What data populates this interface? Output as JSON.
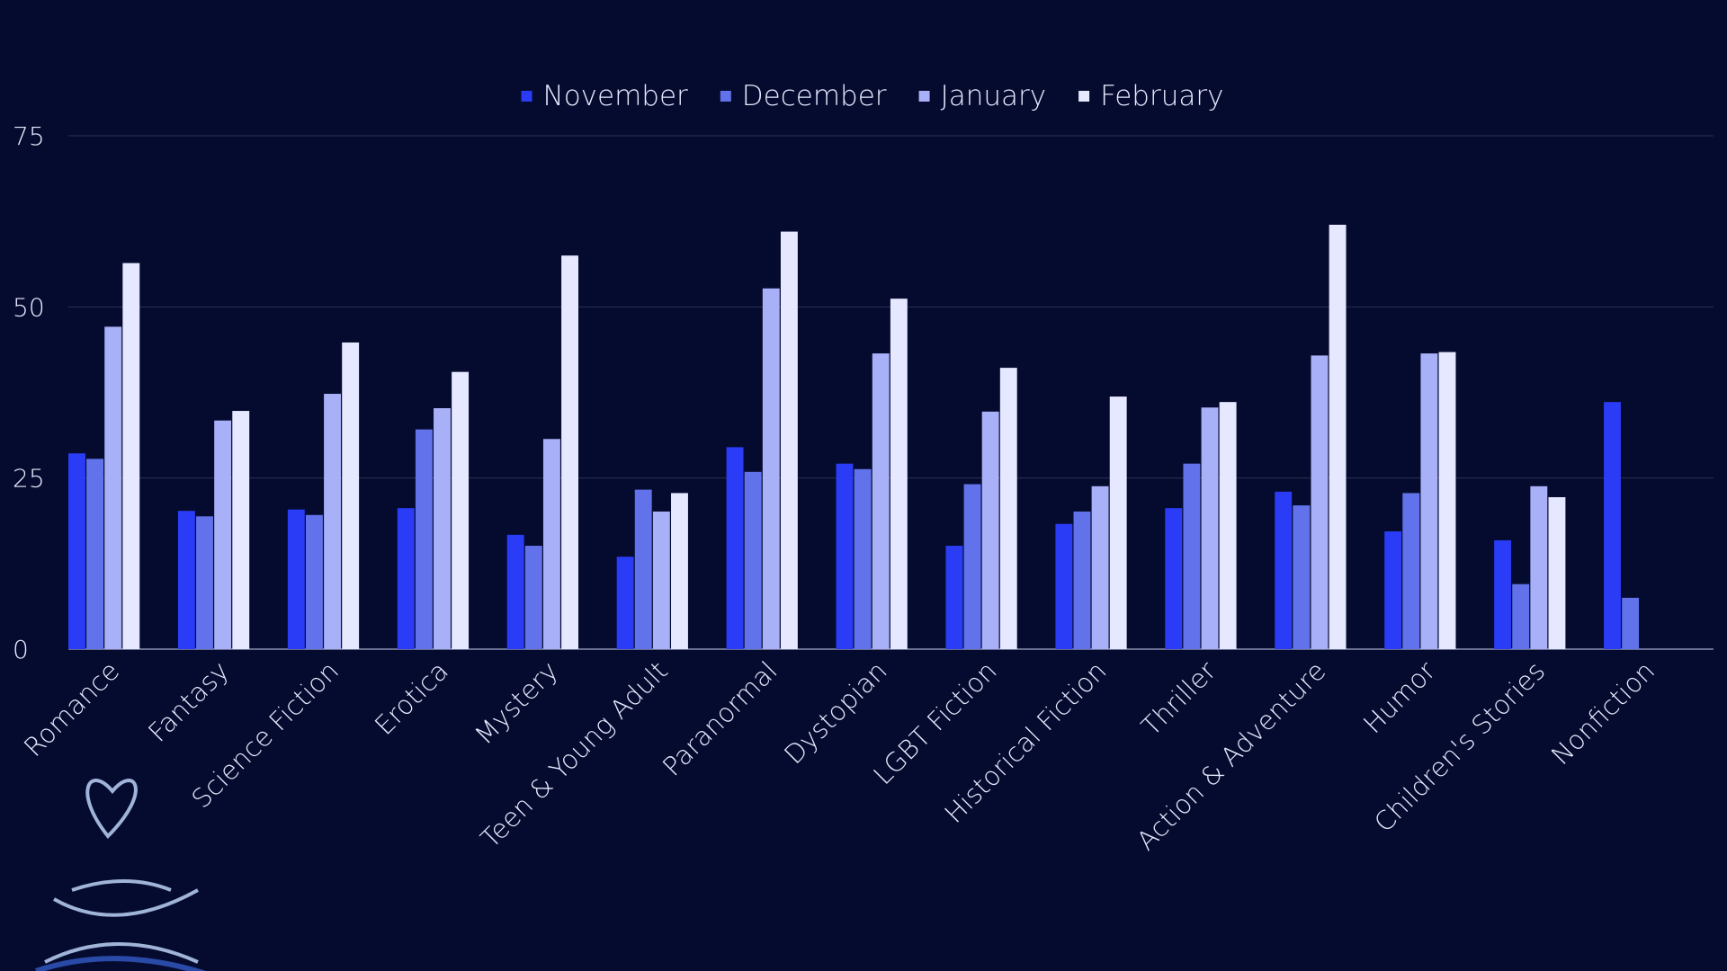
{
  "chart_data": {
    "type": "bar",
    "categories": [
      "Romance",
      "Fantasy",
      "Science Fiction",
      "Erotica",
      "Mystery",
      "Teen & Young Adult",
      "Paranormal",
      "Dystopian",
      "LGBT Fiction",
      "Historical Fiction",
      "Thriller",
      "Action & Adventure",
      "Humor",
      "Children's Stories",
      "Nonfiction"
    ],
    "series": [
      {
        "name": "November",
        "color": "#2a3cf5",
        "values": [
          28.6,
          20.2,
          20.4,
          20.6,
          16.7,
          13.5,
          29.5,
          27.1,
          15.1,
          18.3,
          20.6,
          23.0,
          17.2,
          15.9,
          36.1
        ]
      },
      {
        "name": "December",
        "color": "#6272ea",
        "values": [
          27.8,
          19.4,
          19.6,
          32.1,
          15.1,
          23.3,
          25.9,
          26.3,
          24.1,
          20.1,
          27.1,
          21.0,
          22.8,
          9.5,
          7.5
        ]
      },
      {
        "name": "January",
        "color": "#a8b0f8",
        "values": [
          47.1,
          33.4,
          37.3,
          35.2,
          30.7,
          20.1,
          52.7,
          43.2,
          34.7,
          23.8,
          35.3,
          42.9,
          43.2,
          23.8,
          null
        ]
      },
      {
        "name": "February",
        "color": "#e6e8ff",
        "values": [
          56.4,
          34.8,
          44.8,
          40.5,
          57.5,
          22.8,
          61.0,
          51.2,
          41.1,
          36.9,
          36.1,
          62.0,
          43.4,
          22.2,
          null
        ]
      }
    ],
    "ylim": [
      0,
      75
    ],
    "yticks": [
      0,
      25,
      50,
      75
    ],
    "grid": true,
    "legend": "top"
  }
}
